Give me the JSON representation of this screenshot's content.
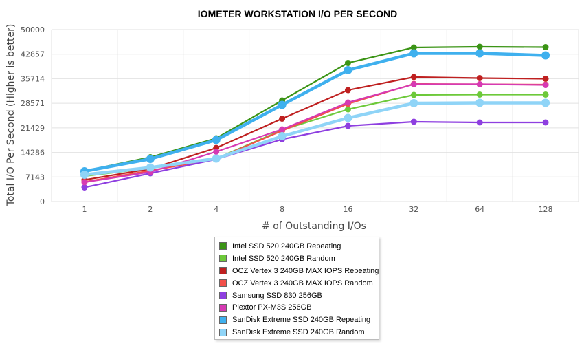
{
  "chart_data": {
    "type": "line",
    "title": "IOMETER WORKSTATION I/O PER SECOND",
    "xlabel": "# of Outstanding I/Os",
    "ylabel": "Total I/O Per Second (Higher is better)",
    "categories": [
      "1",
      "2",
      "4",
      "8",
      "16",
      "32",
      "64",
      "128"
    ],
    "y_ticks": [
      "0",
      "7143",
      "14286",
      "21429",
      "28571",
      "35714",
      "42857",
      "50000"
    ],
    "ylim": [
      0,
      50000
    ],
    "grid": true,
    "legend_position": "bottom",
    "series": [
      {
        "name": "Intel SSD 520 240GB Repeating",
        "color": "#3b9415",
        "values": [
          8900,
          12900,
          18400,
          29400,
          40300,
          44800,
          45000,
          44900
        ]
      },
      {
        "name": "Intel SSD 520 240GB Random",
        "color": "#6dc93a",
        "values": [
          7400,
          9700,
          12500,
          20800,
          26800,
          31000,
          31100,
          31100
        ]
      },
      {
        "name": "OCZ Vertex 3 240GB MAX IOPS Repeating",
        "color": "#bf2020",
        "values": [
          6300,
          9500,
          15600,
          24100,
          32400,
          36200,
          35900,
          35700
        ]
      },
      {
        "name": "OCZ Vertex 3 240GB MAX IOPS Random",
        "color": "#f2504a",
        "values": [
          5700,
          9000,
          12400,
          20600,
          28400,
          34200,
          34100,
          34000
        ]
      },
      {
        "name": "Samsung SSD 830 256GB",
        "color": "#8e3fe0",
        "values": [
          4100,
          8200,
          12300,
          18100,
          22000,
          23200,
          23000,
          23000
        ]
      },
      {
        "name": "Plextor PX-M3S 256GB",
        "color": "#d63ab3",
        "values": [
          5600,
          8600,
          14500,
          21000,
          28800,
          34100,
          34100,
          33900
        ]
      },
      {
        "name": "SanDisk Extreme SSD 240GB Repeating",
        "color": "#3fb0ee",
        "values": [
          8800,
          12400,
          17900,
          28100,
          38200,
          43100,
          43100,
          42500
        ]
      },
      {
        "name": "SanDisk Extreme SSD 240GB Random",
        "color": "#8fd4f7",
        "values": [
          7800,
          9900,
          12500,
          19000,
          24300,
          28600,
          28700,
          28700
        ]
      }
    ]
  }
}
